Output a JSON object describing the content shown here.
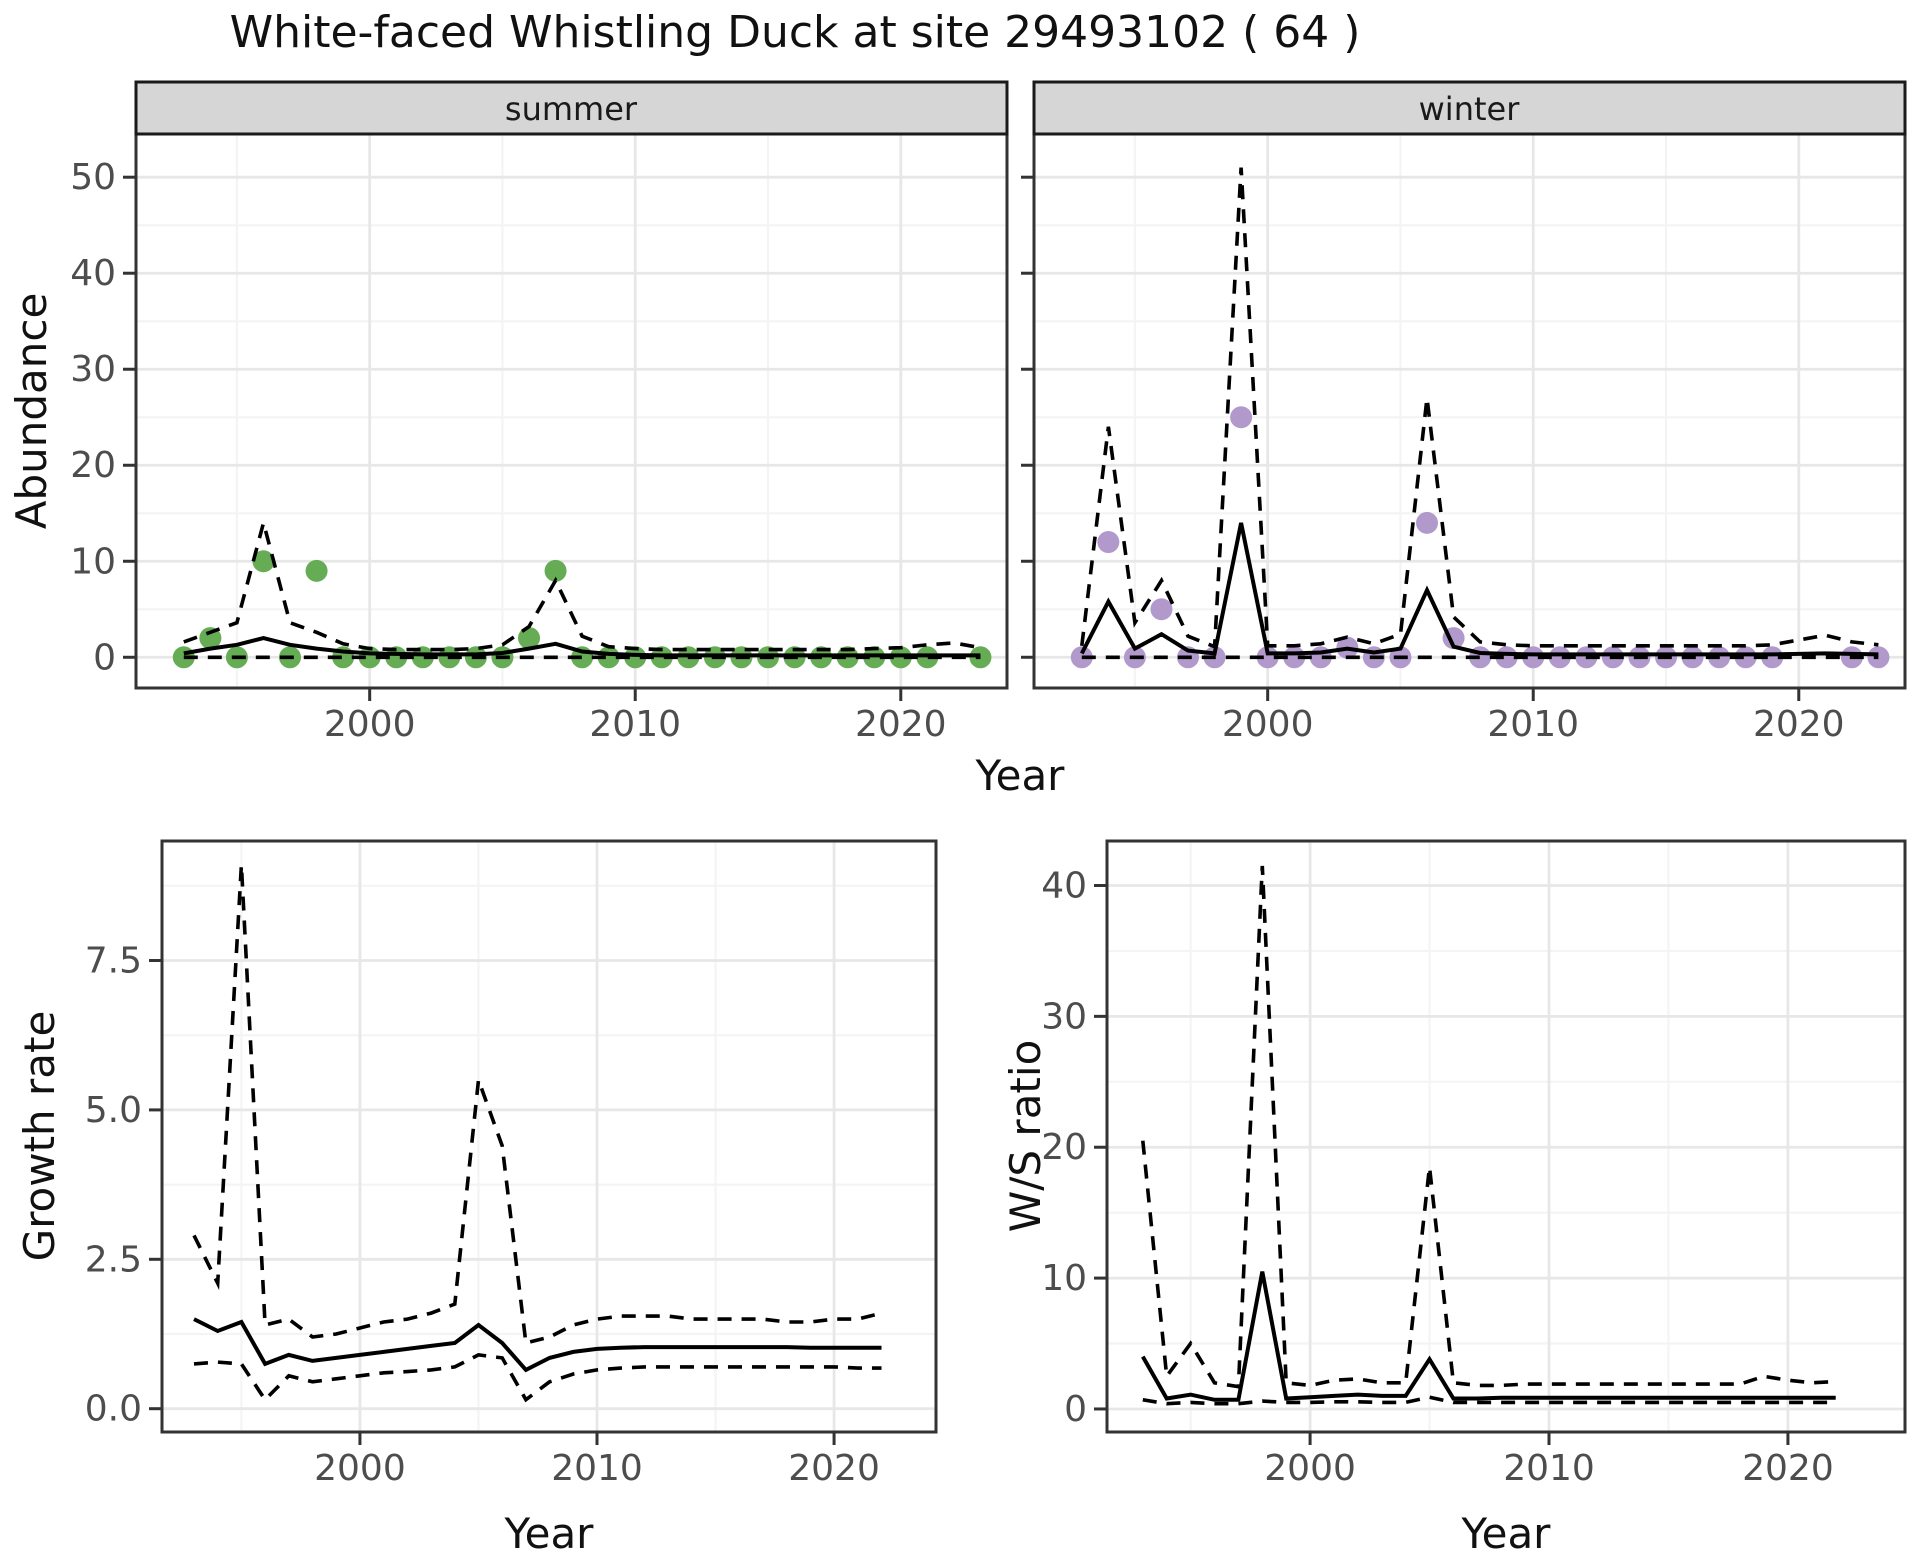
{
  "title": "White-faced Whistling Duck at site 29493102 ( 64 )",
  "facets": [
    "summer",
    "winter"
  ],
  "axis_titles": {
    "abundance": "Abundance",
    "growth": "Growth rate",
    "ws": "W/S ratio",
    "year_top": "Year",
    "year_bottom_left": "Year",
    "year_bottom_right": "Year"
  },
  "colors": {
    "summer_point": "#65AC55",
    "winter_point": "#B299CC",
    "line": "#000000",
    "strip_bg": "#D6D6D6",
    "strip_border": "#1a1a1a",
    "panel_border": "#333333",
    "grid_major": "#E7E7E7",
    "grid_minor": "#F4F4F4",
    "tick_mark": "#333333",
    "tick_text": "#4d4d4d"
  },
  "chart_data": [
    {
      "id": "abundance-summer",
      "type": "line",
      "facet": "summer",
      "title": "summer facet: observed counts, modelled mean and 95% CI",
      "xlabel": "Year",
      "ylabel": "Abundance",
      "xlim": [
        1991.2,
        2024.0
      ],
      "ylim": [
        -3.2,
        54.5
      ],
      "xticks": {
        "values": [
          2000,
          2010,
          2020
        ],
        "labels": [
          "2000",
          "2010",
          "2020"
        ]
      },
      "xminor": [
        1995,
        2005,
        2015
      ],
      "yticks": {
        "values": [
          0,
          10,
          20,
          30,
          40,
          50
        ],
        "labels": [
          "0",
          "10",
          "20",
          "30",
          "40",
          "50"
        ]
      },
      "yminor": [
        5,
        15,
        25,
        35,
        45
      ],
      "x": [
        1993,
        1994,
        1995,
        1996,
        1997,
        1998,
        1999,
        2000,
        2001,
        2002,
        2003,
        2004,
        2005,
        2006,
        2007,
        2008,
        2009,
        2010,
        2011,
        2012,
        2013,
        2014,
        2015,
        2016,
        2017,
        2018,
        2019,
        2020,
        2021,
        2022,
        2023
      ],
      "series": [
        {
          "name": "observed",
          "style": "points",
          "color_key": "summer_point",
          "values": [
            0,
            2,
            0,
            10,
            0,
            9,
            0,
            0,
            0,
            0,
            0,
            0,
            0,
            2,
            9,
            0,
            0,
            0,
            0,
            0,
            0,
            0,
            0,
            0,
            0,
            0,
            0,
            0,
            0,
            null,
            0
          ]
        },
        {
          "name": "mean",
          "style": "solid",
          "values": [
            0.4,
            0.9,
            1.3,
            2.0,
            1.3,
            0.9,
            0.6,
            0.4,
            0.35,
            0.3,
            0.3,
            0.3,
            0.45,
            0.9,
            1.4,
            0.6,
            0.35,
            0.25,
            0.2,
            0.2,
            0.2,
            0.2,
            0.2,
            0.2,
            0.2,
            0.2,
            0.2,
            0.2,
            0.2,
            0.2,
            0.2
          ]
        },
        {
          "name": "upper_ci",
          "style": "dashed",
          "values": [
            1.6,
            2.6,
            3.6,
            14,
            3.6,
            2.6,
            1.4,
            0.9,
            0.8,
            0.8,
            0.8,
            0.9,
            1.3,
            3.2,
            8,
            2.2,
            1.1,
            0.9,
            0.8,
            0.8,
            0.8,
            0.8,
            0.8,
            0.8,
            0.8,
            0.8,
            0.9,
            1.0,
            1.3,
            1.5,
            1.0
          ]
        },
        {
          "name": "lower_ci",
          "style": "dashed",
          "values": [
            0,
            0,
            0,
            0,
            0,
            0,
            0,
            0,
            0,
            0,
            0,
            0,
            0,
            0,
            0,
            0,
            0,
            0,
            0,
            0,
            0,
            0,
            0,
            0,
            0,
            0,
            0,
            0,
            0,
            0,
            0
          ]
        }
      ]
    },
    {
      "id": "abundance-winter",
      "type": "line",
      "facet": "winter",
      "title": "winter facet: observed counts, modelled mean and 95% CI",
      "xlabel": "Year",
      "ylabel": "Abundance",
      "xlim": [
        1991.2,
        2024.0
      ],
      "ylim": [
        -3.2,
        54.5
      ],
      "xticks": {
        "values": [
          2000,
          2010,
          2020
        ],
        "labels": [
          "2000",
          "2010",
          "2020"
        ]
      },
      "xminor": [
        1995,
        2005,
        2015
      ],
      "yticks": {
        "values": [
          0,
          10,
          20,
          30,
          40,
          50
        ],
        "labels": [
          "0",
          "10",
          "20",
          "30",
          "40",
          "50"
        ]
      },
      "yminor": [
        5,
        15,
        25,
        35,
        45
      ],
      "x": [
        1993,
        1994,
        1995,
        1996,
        1997,
        1998,
        1999,
        2000,
        2001,
        2002,
        2003,
        2004,
        2005,
        2006,
        2007,
        2008,
        2009,
        2010,
        2011,
        2012,
        2013,
        2014,
        2015,
        2016,
        2017,
        2018,
        2019,
        2020,
        2021,
        2022,
        2023
      ],
      "series": [
        {
          "name": "observed",
          "style": "points",
          "color_key": "winter_point",
          "values": [
            0,
            12,
            0,
            5,
            0,
            0,
            25,
            0,
            0,
            0,
            1,
            0,
            0,
            14,
            2,
            0,
            0,
            0,
            0,
            0,
            0,
            0,
            0,
            0,
            0,
            0,
            0,
            null,
            null,
            0,
            0
          ]
        },
        {
          "name": "mean",
          "style": "solid",
          "values": [
            0.4,
            5.8,
            0.9,
            2.4,
            0.7,
            0.4,
            14,
            0.4,
            0.4,
            0.5,
            0.9,
            0.5,
            0.9,
            7,
            1.1,
            0.45,
            0.35,
            0.3,
            0.3,
            0.3,
            0.3,
            0.3,
            0.3,
            0.3,
            0.3,
            0.3,
            0.3,
            0.35,
            0.4,
            0.35,
            0.3
          ]
        },
        {
          "name": "upper_ci",
          "style": "dashed",
          "values": [
            1.2,
            24,
            3.6,
            8,
            2.2,
            1.1,
            51,
            1.2,
            1.2,
            1.4,
            2.1,
            1.4,
            2.4,
            27,
            4.2,
            1.6,
            1.3,
            1.2,
            1.2,
            1.2,
            1.2,
            1.2,
            1.2,
            1.2,
            1.2,
            1.2,
            1.3,
            1.8,
            2.3,
            1.6,
            1.3
          ]
        },
        {
          "name": "lower_ci",
          "style": "dashed",
          "values": [
            0,
            0,
            0,
            0,
            0,
            0,
            0,
            0,
            0,
            0,
            0,
            0,
            0,
            0,
            0,
            0,
            0,
            0,
            0,
            0,
            0,
            0,
            0,
            0,
            0,
            0,
            0,
            0,
            0,
            0,
            0
          ]
        }
      ]
    },
    {
      "id": "growth-rate",
      "type": "line",
      "title": "Growth rate with 95% CI",
      "xlabel": "Year",
      "ylabel": "Growth rate",
      "xlim": [
        1991.65,
        2024.3
      ],
      "ylim": [
        -0.39,
        9.5
      ],
      "xticks": {
        "values": [
          2000,
          2010,
          2020
        ],
        "labels": [
          "2000",
          "2010",
          "2020"
        ]
      },
      "xminor": [
        1995,
        2005,
        2015
      ],
      "yticks": {
        "values": [
          0,
          2.5,
          5,
          7.5
        ],
        "labels": [
          "0.0",
          "2.5",
          "5.0",
          "7.5"
        ]
      },
      "yminor": [
        1.25,
        3.75,
        6.25,
        8.75
      ],
      "x": [
        1993,
        1994,
        1995,
        1996,
        1997,
        1998,
        1999,
        2000,
        2001,
        2002,
        2003,
        2004,
        2005,
        2006,
        2007,
        2008,
        2009,
        2010,
        2011,
        2012,
        2013,
        2014,
        2015,
        2016,
        2017,
        2018,
        2019,
        2020,
        2021,
        2022
      ],
      "series": [
        {
          "name": "mean",
          "style": "solid",
          "values": [
            1.5,
            1.3,
            1.45,
            0.75,
            0.9,
            0.8,
            0.85,
            0.9,
            0.95,
            1.0,
            1.05,
            1.1,
            1.4,
            1.1,
            0.65,
            0.85,
            0.95,
            1.0,
            1.02,
            1.03,
            1.03,
            1.03,
            1.03,
            1.03,
            1.03,
            1.03,
            1.02,
            1.02,
            1.02,
            1.02
          ]
        },
        {
          "name": "upper_ci",
          "style": "dashed",
          "values": [
            2.9,
            2.1,
            9.1,
            1.4,
            1.5,
            1.2,
            1.25,
            1.35,
            1.45,
            1.5,
            1.6,
            1.75,
            5.5,
            4.4,
            1.1,
            1.2,
            1.4,
            1.5,
            1.55,
            1.55,
            1.55,
            1.5,
            1.5,
            1.5,
            1.5,
            1.45,
            1.45,
            1.5,
            1.5,
            1.6
          ]
        },
        {
          "name": "lower_ci",
          "style": "dashed",
          "values": [
            0.75,
            0.78,
            0.75,
            0.15,
            0.55,
            0.45,
            0.5,
            0.55,
            0.6,
            0.62,
            0.65,
            0.7,
            0.9,
            0.85,
            0.15,
            0.45,
            0.58,
            0.65,
            0.68,
            0.7,
            0.7,
            0.7,
            0.7,
            0.7,
            0.7,
            0.7,
            0.7,
            0.7,
            0.68,
            0.68
          ]
        }
      ]
    },
    {
      "id": "ws-ratio",
      "type": "line",
      "title": "Winter/Summer ratio with 95% CI",
      "xlabel": "Year",
      "ylabel": "W/S ratio",
      "xlim": [
        1991.5,
        2024.9
      ],
      "ylim": [
        -1.76,
        43.4
      ],
      "xticks": {
        "values": [
          2000,
          2010,
          2020
        ],
        "labels": [
          "2000",
          "2010",
          "2020"
        ]
      },
      "xminor": [
        1995,
        2005,
        2015
      ],
      "yticks": {
        "values": [
          0,
          10,
          20,
          30,
          40
        ],
        "labels": [
          "0",
          "10",
          "20",
          "30",
          "40"
        ]
      },
      "yminor": [
        5,
        15,
        25,
        35
      ],
      "x": [
        1993,
        1994,
        1995,
        1996,
        1997,
        1998,
        1999,
        2000,
        2001,
        2002,
        2003,
        2004,
        2005,
        2006,
        2007,
        2008,
        2009,
        2010,
        2011,
        2012,
        2013,
        2014,
        2015,
        2016,
        2017,
        2018,
        2019,
        2020,
        2021,
        2022
      ],
      "series": [
        {
          "name": "mean",
          "style": "solid",
          "values": [
            4.0,
            0.8,
            1.1,
            0.7,
            0.7,
            10.5,
            0.8,
            0.9,
            1.0,
            1.1,
            1.0,
            1.0,
            3.8,
            0.8,
            0.8,
            0.85,
            0.85,
            0.85,
            0.85,
            0.85,
            0.85,
            0.85,
            0.85,
            0.85,
            0.85,
            0.85,
            0.85,
            0.85,
            0.85,
            0.85
          ]
        },
        {
          "name": "upper_ci",
          "style": "dashed",
          "values": [
            20.5,
            2.5,
            5.0,
            2.0,
            1.7,
            41.5,
            2.0,
            1.8,
            2.2,
            2.3,
            2.0,
            2.0,
            18.5,
            2.0,
            1.8,
            1.8,
            1.9,
            1.9,
            1.9,
            1.9,
            1.9,
            1.9,
            1.9,
            1.9,
            1.9,
            1.9,
            2.5,
            2.2,
            2.0,
            2.1
          ]
        },
        {
          "name": "lower_ci",
          "style": "dashed",
          "values": [
            0.7,
            0.4,
            0.5,
            0.4,
            0.4,
            0.6,
            0.5,
            0.5,
            0.55,
            0.55,
            0.5,
            0.5,
            0.9,
            0.5,
            0.5,
            0.5,
            0.5,
            0.5,
            0.5,
            0.5,
            0.5,
            0.5,
            0.5,
            0.5,
            0.5,
            0.5,
            0.5,
            0.5,
            0.5,
            0.5
          ]
        }
      ]
    }
  ]
}
